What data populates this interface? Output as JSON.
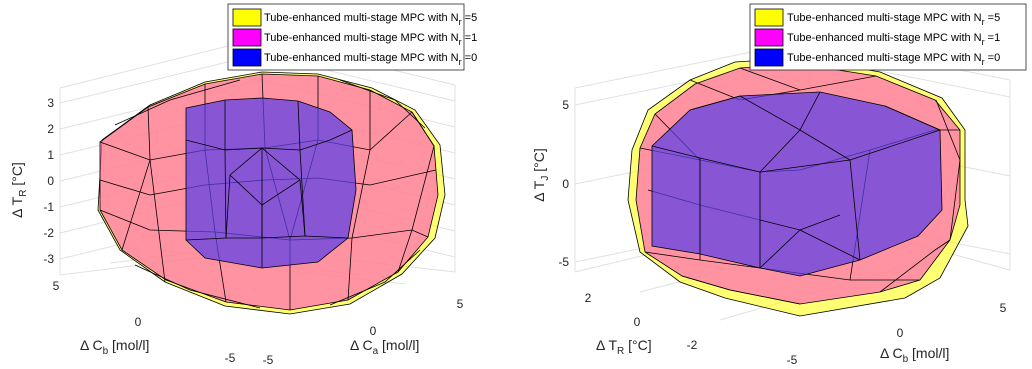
{
  "legend_colors": {
    "Nr5": "#ffff00",
    "Nr1": "#ff00ff",
    "Nr0": "#0000ff"
  },
  "chart_data": [
    {
      "type": "3d-polytope",
      "title": "",
      "legend": [
        {
          "prefix": "Tube-enhanced multi-stage MPC with N",
          "sub": "r",
          "suffix": " =5",
          "color": "#ffff00"
        },
        {
          "prefix": "Tube-enhanced multi-stage MPC with N",
          "sub": "r",
          "suffix": " =1",
          "color": "#ff00ff"
        },
        {
          "prefix": "Tube-enhanced multi-stage MPC with N",
          "sub": "r",
          "suffix": " =0",
          "color": "#0000ff"
        }
      ],
      "axes": {
        "x": {
          "prefix": "Δ C",
          "sub": "a",
          "suffix": " [mol/l]",
          "ticks": [
            "-5",
            "0",
            "5"
          ],
          "range": [
            -6,
            6
          ]
        },
        "y": {
          "prefix": "Δ C",
          "sub": "b",
          "suffix": " [mol/l]",
          "ticks": [
            "-5",
            "0",
            "5"
          ],
          "range": [
            -6,
            6
          ]
        },
        "z": {
          "prefix": "Δ T",
          "sub": "R",
          "suffix": " [°C]",
          "ticks": [
            "-3",
            "-2",
            "-1",
            "0",
            "1",
            "2",
            "3"
          ],
          "range": [
            -3.3,
            3.3
          ]
        }
      },
      "grid": true
    },
    {
      "type": "3d-polytope",
      "title": "",
      "legend": [
        {
          "prefix": "Tube-enhanced multi-stage MPC with N",
          "sub": "r",
          "suffix": " =5",
          "color": "#ffff00"
        },
        {
          "prefix": "Tube-enhanced multi-stage MPC with N",
          "sub": "r",
          "suffix": " =1",
          "color": "#ff00ff"
        },
        {
          "prefix": "Tube-enhanced multi-stage MPC with N",
          "sub": "r",
          "suffix": " =0",
          "color": "#0000ff"
        }
      ],
      "axes": {
        "x": {
          "prefix": "Δ C",
          "sub": "b",
          "suffix": " [mol/l]",
          "ticks": [
            "-5",
            "0",
            "5"
          ],
          "range": [
            -6,
            6
          ]
        },
        "y": {
          "prefix": "Δ T",
          "sub": "R",
          "suffix": " [°C]",
          "ticks": [
            "-2",
            "0",
            "2"
          ],
          "range": [
            -3,
            3
          ]
        },
        "z": {
          "prefix": "Δ T",
          "sub": "J",
          "suffix": " [°C]",
          "ticks": [
            "-5",
            "0",
            "5"
          ],
          "range": [
            -6.5,
            6.5
          ]
        }
      },
      "grid": true
    }
  ]
}
